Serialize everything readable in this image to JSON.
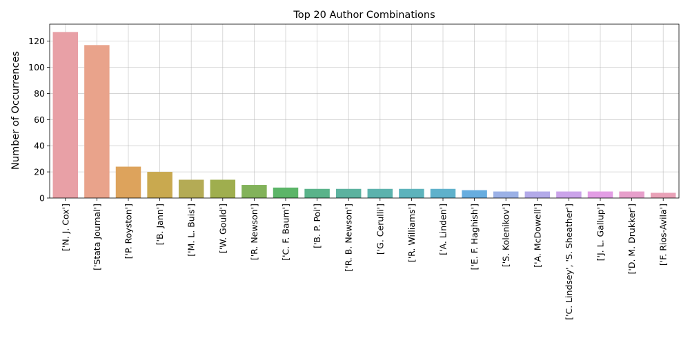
{
  "chart_data": {
    "type": "bar",
    "title": "Top 20 Author Combinations",
    "xlabel": "",
    "ylabel": "Number of Occurrences",
    "ylim": [
      0,
      133
    ],
    "yticks": [
      0,
      20,
      40,
      60,
      80,
      100,
      120
    ],
    "grid": true,
    "categories": [
      "['N. J. Cox']",
      "['Stata Journal']",
      "['P. Royston']",
      "['B. Jann']",
      "['M. L. Buis']",
      "['W. Gould']",
      "['R. Newson']",
      "['C. F. Baum']",
      "['B. P. Poi']",
      "['R. B. Newson']",
      "['G. Cerulli']",
      "['R. Williams']",
      "['A. Linden']",
      "['E. F. Haghish']",
      "['S. Kolenikov']",
      "['A. McDowell']",
      "['C. Lindsey', 'S. Sheather']",
      "['J. L. Gallup']",
      "['D. M. Drukker']",
      "['F. Rios-Avila']"
    ],
    "values": [
      127,
      117,
      24,
      20,
      14,
      14,
      10,
      8,
      7,
      7,
      7,
      7,
      7,
      6,
      5,
      5,
      5,
      5,
      5,
      4
    ],
    "colors": [
      "#e8a0a6",
      "#e9a38b",
      "#dda35c",
      "#c9a94f",
      "#b4ab55",
      "#9fae4e",
      "#82b25a",
      "#5cb568",
      "#5ab38a",
      "#5cb29f",
      "#5cb2ad",
      "#5db3bc",
      "#5fb1cb",
      "#67addf",
      "#9bb1e6",
      "#b3aae9",
      "#cba4ea",
      "#e39ee5",
      "#e79fcb",
      "#e9a1b7"
    ]
  }
}
